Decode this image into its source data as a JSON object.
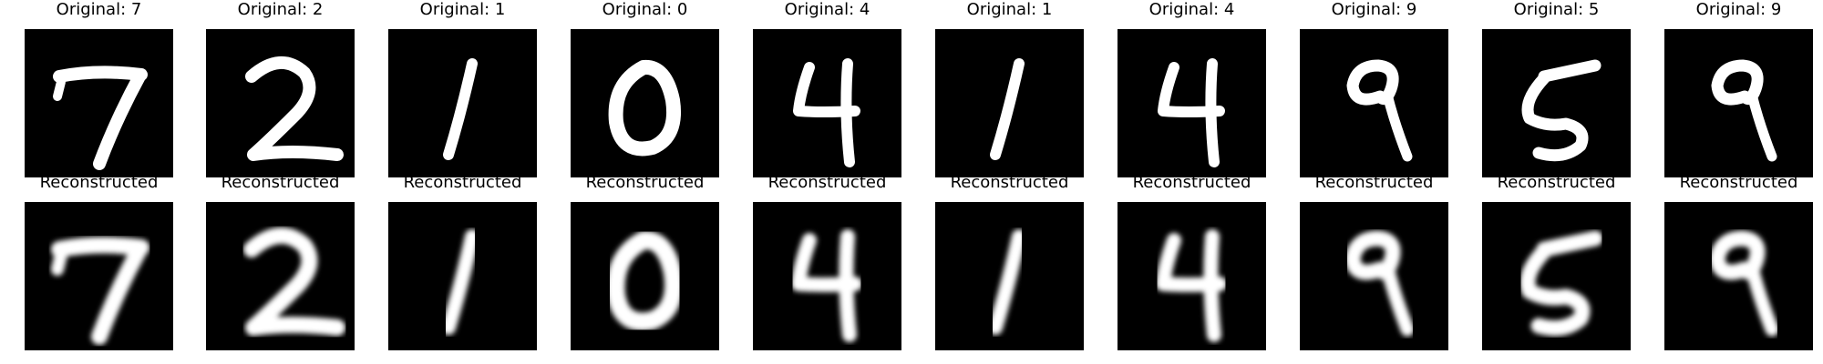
{
  "originals": [
    {
      "label": "Original: 7",
      "digit": "7"
    },
    {
      "label": "Original: 2",
      "digit": "2"
    },
    {
      "label": "Original: 1",
      "digit": "1"
    },
    {
      "label": "Original: 0",
      "digit": "0"
    },
    {
      "label": "Original: 4",
      "digit": "4"
    },
    {
      "label": "Original: 1",
      "digit": "1"
    },
    {
      "label": "Original: 4",
      "digit": "4"
    },
    {
      "label": "Original: 9",
      "digit": "9"
    },
    {
      "label": "Original: 5",
      "digit": "5"
    },
    {
      "label": "Original: 9",
      "digit": "9"
    }
  ],
  "reconstructed": [
    {
      "label": "Reconstructed",
      "digit": "7"
    },
    {
      "label": "Reconstructed",
      "digit": "2"
    },
    {
      "label": "Reconstructed",
      "digit": "1"
    },
    {
      "label": "Reconstructed",
      "digit": "0"
    },
    {
      "label": "Reconstructed",
      "digit": "4"
    },
    {
      "label": "Reconstructed",
      "digit": "1"
    },
    {
      "label": "Reconstructed",
      "digit": "4"
    },
    {
      "label": "Reconstructed",
      "digit": "9"
    },
    {
      "label": "Reconstructed",
      "digit": "5"
    },
    {
      "label": "Reconstructed",
      "digit": "9"
    }
  ],
  "colors": {
    "image_background": "#000000",
    "stroke": "#ffffff",
    "title_text": "#000000"
  }
}
